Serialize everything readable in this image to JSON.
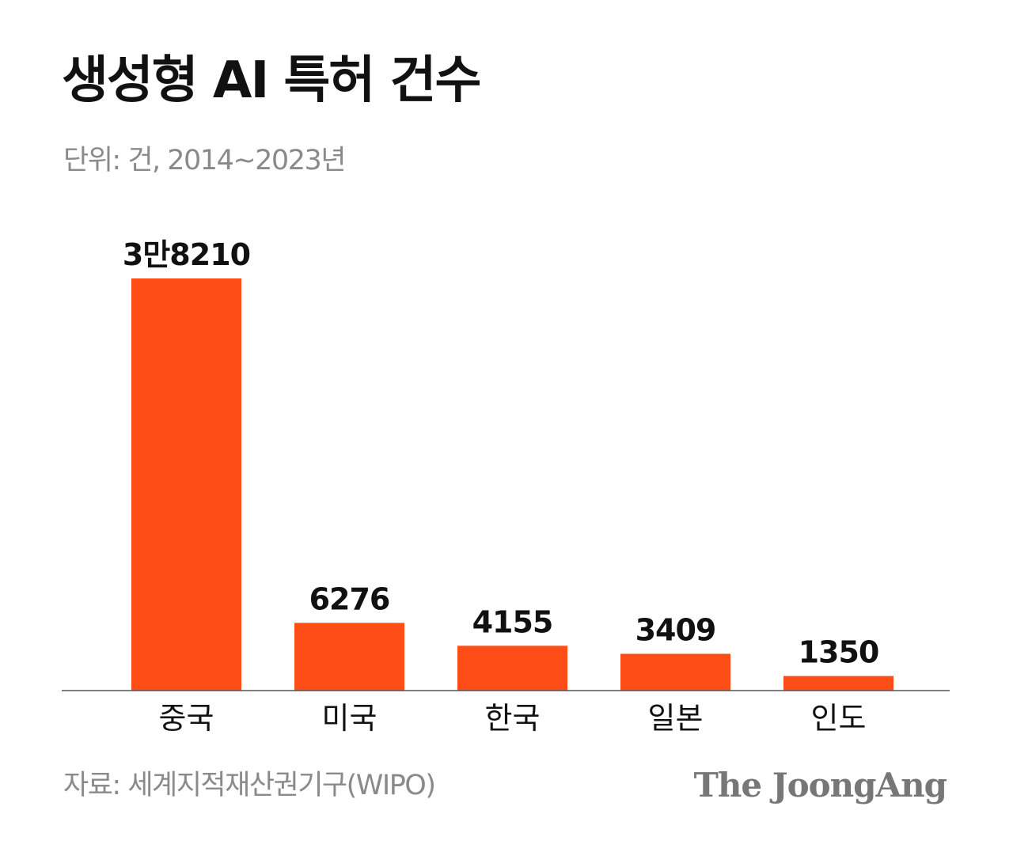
{
  "header": {
    "title": "생성형 AI 특허 건수",
    "subtitle": "단위: 건, 2014~2023년"
  },
  "footer": {
    "source": "자료: 세계지적재산권기구(WIPO)",
    "logo": "The JoongAng"
  },
  "colors": {
    "bar": "#ff4d18",
    "baseline": "#555555",
    "label": "#111111"
  },
  "chart_data": {
    "type": "bar",
    "title": "생성형 AI 특허 건수",
    "subtitle": "단위: 건, 2014~2023년",
    "categories": [
      "중국",
      "미국",
      "한국",
      "일본",
      "인도"
    ],
    "values": [
      38210,
      6276,
      4155,
      3409,
      1350
    ],
    "value_labels": [
      "3만8210",
      "6276",
      "4155",
      "3409",
      "1350"
    ],
    "xlabel": "",
    "ylabel": "",
    "ylim": [
      0,
      38210
    ],
    "grid": false,
    "legend": "none"
  }
}
